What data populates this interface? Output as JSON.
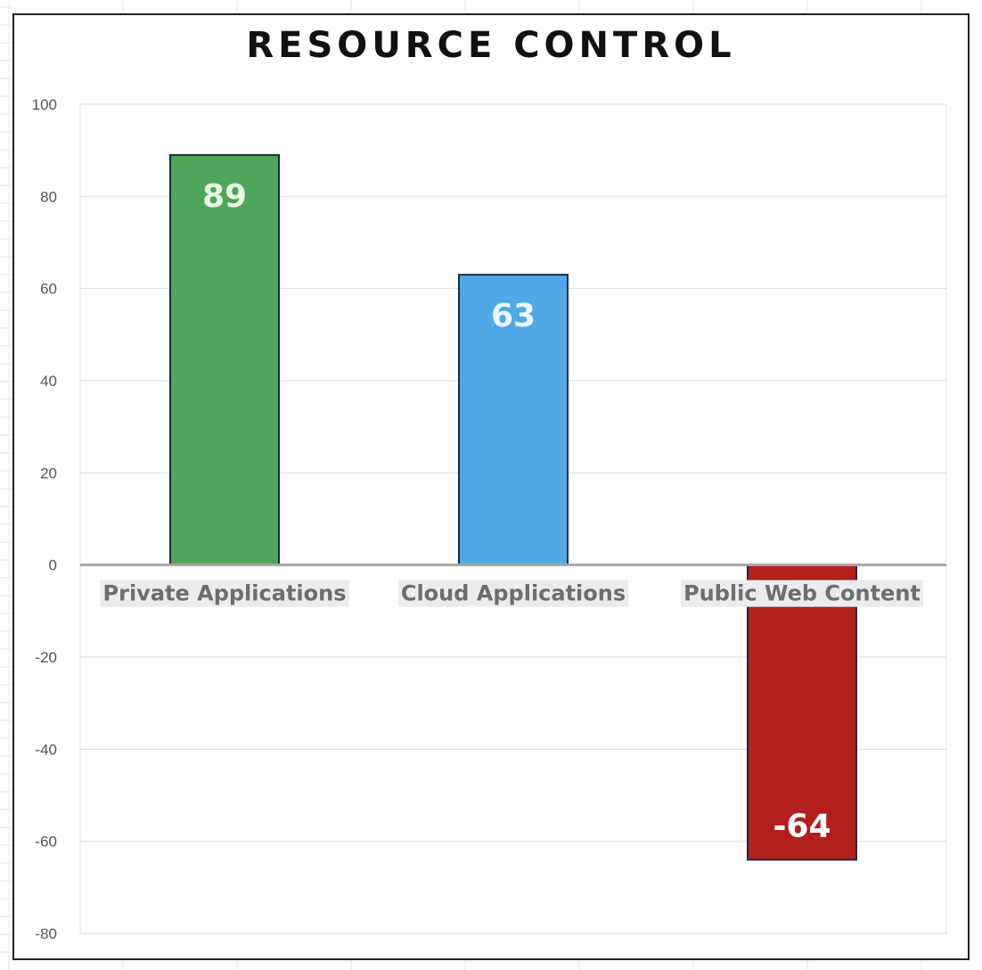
{
  "chart_data": {
    "type": "bar",
    "title": "RESOURCE CONTROL",
    "xlabel": "",
    "ylabel": "",
    "categories": [
      "Private Applications",
      "Cloud Applications",
      "Public Web Content"
    ],
    "values": [
      89,
      63,
      -64
    ],
    "data_labels": [
      "89",
      "63",
      "-64"
    ],
    "colors": [
      "#4ea65a",
      "#4fa9e6",
      "#b21f1c"
    ],
    "data_label_colors": [
      "#eaf7e6",
      "#eaf6ff",
      "#ffffff"
    ],
    "ylim": [
      -80,
      100
    ],
    "yticks": [
      100,
      80,
      60,
      40,
      20,
      0,
      -20,
      -40,
      -60,
      -80
    ],
    "grid": true,
    "legend": "none"
  }
}
